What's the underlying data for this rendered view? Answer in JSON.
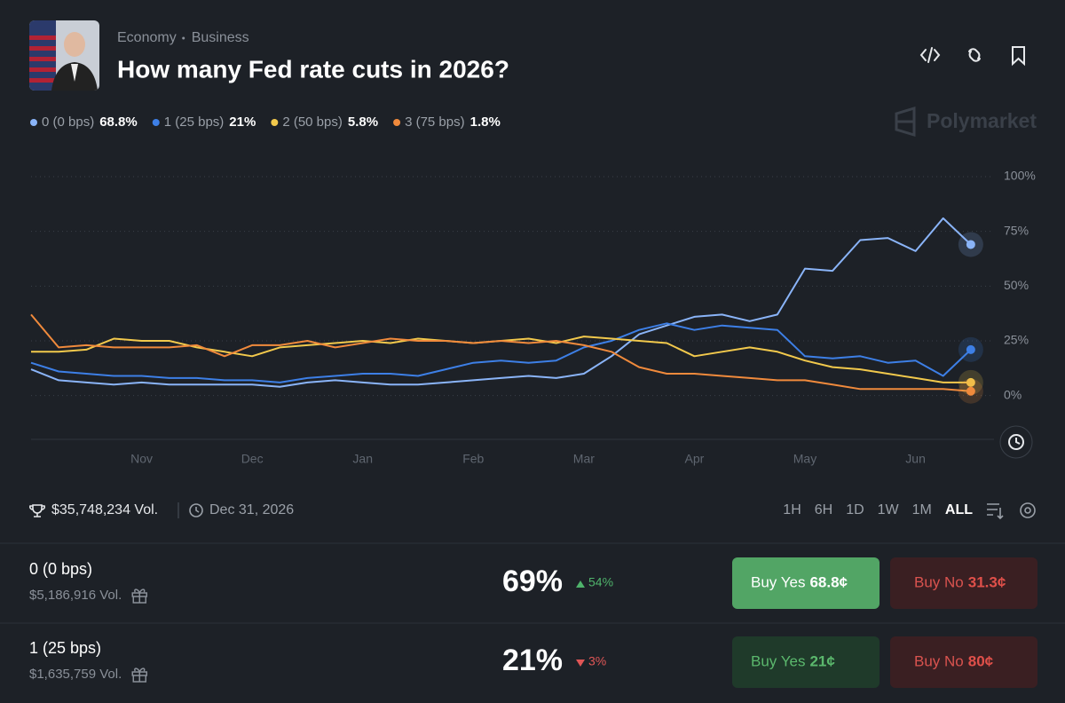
{
  "header": {
    "categories": [
      "Economy",
      "Business"
    ],
    "title": "How many Fed rate cuts in 2026?",
    "brand": "Polymarket"
  },
  "chart_data": {
    "type": "line",
    "x": [
      0,
      0.25,
      0.5,
      0.75,
      1,
      1.25,
      1.5,
      1.75,
      2,
      2.25,
      2.5,
      2.75,
      3,
      3.25,
      3.5,
      3.75,
      4,
      4.25,
      4.5,
      4.75,
      5,
      5.25,
      5.5,
      5.75,
      6,
      6.25,
      6.5,
      6.75,
      7,
      7.25,
      7.5,
      7.75,
      8,
      8.25,
      8.5
    ],
    "xlim": [
      0,
      8.75
    ],
    "xticks": [
      {
        "value": 1,
        "label": "Nov"
      },
      {
        "value": 2,
        "label": "Dec"
      },
      {
        "value": 3,
        "label": "Jan"
      },
      {
        "value": 4,
        "label": "Feb"
      },
      {
        "value": 5,
        "label": "Mar"
      },
      {
        "value": 6,
        "label": "Apr"
      },
      {
        "value": 7,
        "label": "May"
      },
      {
        "value": 8,
        "label": "Jun"
      }
    ],
    "ylim": [
      -20,
      100
    ],
    "yticks": [
      {
        "value": 0,
        "label": "0%"
      },
      {
        "value": 25,
        "label": "25%"
      },
      {
        "value": 50,
        "label": "50%"
      },
      {
        "value": 75,
        "label": "75%"
      },
      {
        "value": 100,
        "label": "100%"
      }
    ],
    "grid": true,
    "series": [
      {
        "name": "0 (0 bps)",
        "legend_label": "68.8%",
        "color": "#8ab4f8",
        "values": [
          12,
          7,
          6,
          5,
          6,
          5,
          5,
          5,
          5,
          4,
          6,
          7,
          6,
          5,
          5,
          6,
          7,
          8,
          9,
          8,
          10,
          18,
          28,
          32,
          36,
          37,
          34,
          37,
          58,
          57,
          71,
          72,
          66,
          81,
          69
        ]
      },
      {
        "name": "1 (25 bps)",
        "legend_label": "21%",
        "color": "#3d7fe6",
        "values": [
          15,
          11,
          10,
          9,
          9,
          8,
          8,
          7,
          7,
          6,
          8,
          9,
          10,
          10,
          9,
          12,
          15,
          16,
          15,
          16,
          22,
          25,
          30,
          33,
          30,
          32,
          31,
          30,
          18,
          17,
          18,
          15,
          16,
          9,
          21
        ]
      },
      {
        "name": "2 (50 bps)",
        "legend_label": "5.8%",
        "color": "#f2c94c",
        "values": [
          20,
          20,
          21,
          26,
          25,
          25,
          22,
          20,
          18,
          22,
          23,
          24,
          25,
          24,
          26,
          25,
          24,
          25,
          26,
          24,
          27,
          26,
          25,
          24,
          18,
          20,
          22,
          20,
          16,
          13,
          12,
          10,
          8,
          6,
          6
        ]
      },
      {
        "name": "3 (75 bps)",
        "legend_label": "1.8%",
        "color": "#f08a3c",
        "values": [
          37,
          22,
          23,
          22,
          22,
          22,
          23,
          18,
          23,
          23,
          25,
          22,
          24,
          26,
          25,
          25,
          24,
          25,
          24,
          25,
          23,
          20,
          13,
          10,
          10,
          9,
          8,
          7,
          7,
          5,
          3,
          3,
          3,
          3,
          2
        ]
      }
    ]
  },
  "summary": {
    "volume": "$35,748,234 Vol.",
    "end_date": "Dec 31, 2026",
    "ranges": [
      "1H",
      "6H",
      "1D",
      "1W",
      "1M",
      "ALL"
    ],
    "active_range": "ALL"
  },
  "markets": [
    {
      "name": "0 (0 bps)",
      "volume": "$5,186,916 Vol.",
      "price": "69%",
      "change": "54%",
      "direction": "up",
      "buy_yes": "Buy Yes",
      "yes_price": "68.8¢",
      "buy_no": "Buy No",
      "no_price": "31.3¢"
    },
    {
      "name": "1 (25 bps)",
      "volume": "$1,635,759 Vol.",
      "price": "21%",
      "change": "3%",
      "direction": "down",
      "buy_yes": "Buy Yes",
      "yes_price": "21¢",
      "buy_no": "Buy No",
      "no_price": "80¢"
    }
  ]
}
